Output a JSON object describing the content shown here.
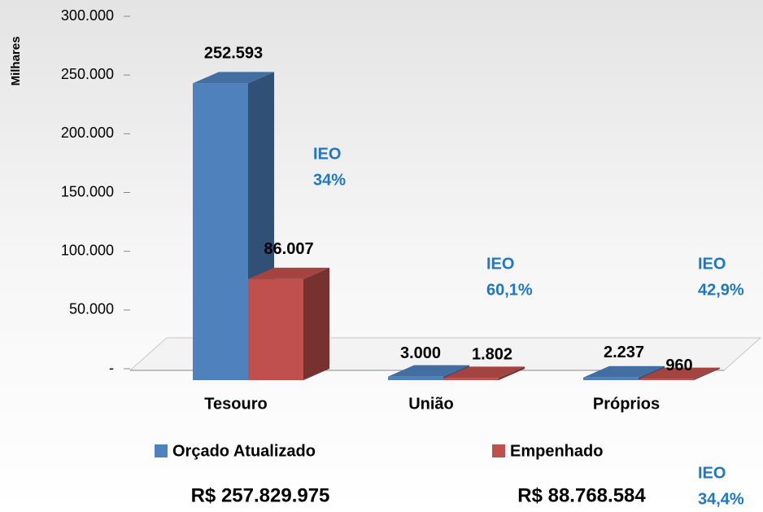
{
  "chart_data": {
    "type": "bar3d",
    "y_axis_label": "Milhares",
    "categories": [
      "Tesouro",
      "União",
      "Próprios"
    ],
    "series": [
      {
        "name": "Orçado Atualizado",
        "color": "#4f81bd",
        "values": [
          252593,
          3000,
          2237
        ],
        "value_labels": [
          "252.593",
          "3.000",
          "2.237"
        ]
      },
      {
        "name": "Empenhado",
        "color": "#c0504d",
        "values": [
          86007,
          1802,
          960
        ],
        "value_labels": [
          "86.007",
          "1.802",
          "960"
        ]
      }
    ],
    "ylim": [
      0,
      300000
    ],
    "yticks": [
      {
        "value": 0,
        "label": "-"
      },
      {
        "value": 50000,
        "label": "50.000"
      },
      {
        "value": 100000,
        "label": "100.000"
      },
      {
        "value": 150000,
        "label": "150.000"
      },
      {
        "value": 200000,
        "label": "200.000"
      },
      {
        "value": 250000,
        "label": "250.000"
      },
      {
        "value": 300000,
        "label": "300.000"
      }
    ],
    "annotations": [
      {
        "lines": [
          "IEO",
          "34%"
        ]
      },
      {
        "lines": [
          "IEO",
          "60,1%"
        ]
      },
      {
        "lines": [
          "IEO",
          "42,9%"
        ]
      },
      {
        "lines": [
          "IEO",
          "34,4%"
        ]
      }
    ],
    "annotation_color": "#1f77c4",
    "totals": [
      "R$ 257.829.975",
      "R$ 88.768.584"
    ]
  }
}
